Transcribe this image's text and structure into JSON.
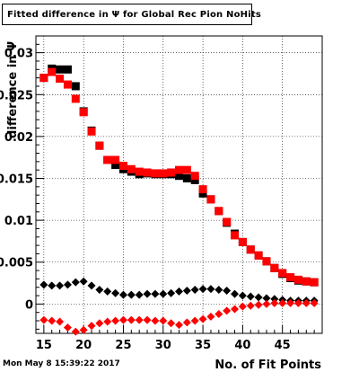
{
  "chart_data": {
    "type": "scatter",
    "title": "Fitted difference in Ψ  for Global Rec Pion NoHits",
    "xlabel": "No. of Fit Points",
    "ylabel": "difference in Ψ",
    "xlim": [
      14,
      50
    ],
    "ylim": [
      -0.0035,
      0.032
    ],
    "x_ticks": [
      15,
      20,
      25,
      30,
      35,
      40,
      45
    ],
    "y_ticks": [
      0,
      0.005,
      0.01,
      0.015,
      0.02,
      0.025,
      0.03
    ],
    "y_tick_labels": [
      "0",
      "0.005",
      "0.01",
      "0.015",
      "0.02",
      "0.025",
      "0.03"
    ],
    "grid": true,
    "series": [
      {
        "marker": "square",
        "color": "#000000",
        "x": [
          15,
          16,
          17,
          18,
          19,
          20,
          21,
          22,
          23,
          24,
          25,
          26,
          27,
          28,
          29,
          30,
          31,
          32,
          33,
          34,
          35,
          36,
          37,
          38,
          39,
          40,
          41,
          42,
          43,
          44,
          45,
          46,
          47,
          48,
          49
        ],
        "y": [
          0.027,
          0.0281,
          0.028,
          0.028,
          0.026,
          0.023,
          0.0207,
          0.0189,
          0.0172,
          0.0166,
          0.0161,
          0.0158,
          0.0155,
          0.0156,
          0.0155,
          0.0155,
          0.0155,
          0.0153,
          0.015,
          0.0148,
          0.0132,
          0.0125,
          0.0111,
          0.0097,
          0.0084,
          0.0074,
          0.0065,
          0.0058,
          0.0051,
          0.0043,
          0.0036,
          0.0031,
          0.0028,
          0.0027,
          0.0026
        ]
      },
      {
        "marker": "square",
        "color": "#ff0000",
        "x": [
          15,
          16,
          17,
          18,
          19,
          20,
          21,
          22,
          23,
          24,
          25,
          26,
          27,
          28,
          29,
          30,
          31,
          32,
          33,
          34,
          35,
          36,
          37,
          38,
          39,
          40,
          41,
          42,
          43,
          44,
          45,
          46,
          47,
          48,
          49
        ],
        "y": [
          0.027,
          0.0277,
          0.0269,
          0.0262,
          0.0245,
          0.0229,
          0.0206,
          0.0189,
          0.0172,
          0.0172,
          0.0165,
          0.0161,
          0.0158,
          0.0157,
          0.0156,
          0.0156,
          0.0157,
          0.016,
          0.016,
          0.0153,
          0.0137,
          0.0125,
          0.0111,
          0.0098,
          0.0082,
          0.0074,
          0.0065,
          0.0058,
          0.0051,
          0.0043,
          0.0037,
          0.0032,
          0.0029,
          0.0027,
          0.0026
        ]
      },
      {
        "marker": "diamond",
        "color": "#000000",
        "x": [
          15,
          16,
          17,
          18,
          19,
          20,
          21,
          22,
          23,
          24,
          25,
          26,
          27,
          28,
          29,
          30,
          31,
          32,
          33,
          34,
          35,
          36,
          37,
          38,
          39,
          40,
          41,
          42,
          43,
          44,
          45,
          46,
          47,
          48,
          49
        ],
        "y": [
          0.0023,
          0.0022,
          0.0022,
          0.0023,
          0.0026,
          0.0027,
          0.0022,
          0.0017,
          0.0015,
          0.0013,
          0.0011,
          0.0011,
          0.0011,
          0.0012,
          0.0012,
          0.0012,
          0.0013,
          0.0015,
          0.0016,
          0.0017,
          0.0018,
          0.0018,
          0.0017,
          0.0016,
          0.0012,
          0.001,
          0.0009,
          0.0008,
          0.0007,
          0.0006,
          0.0005,
          0.0004,
          0.0004,
          0.0004,
          0.0004
        ]
      },
      {
        "marker": "diamond",
        "color": "#ff0000",
        "x": [
          15,
          16,
          17,
          18,
          19,
          20,
          21,
          22,
          23,
          24,
          25,
          26,
          27,
          28,
          29,
          30,
          31,
          32,
          33,
          34,
          35,
          36,
          37,
          38,
          39,
          40,
          41,
          42,
          43,
          44,
          45,
          46,
          47,
          48,
          49
        ],
        "y": [
          -0.0019,
          -0.002,
          -0.0021,
          -0.0028,
          -0.0033,
          -0.0031,
          -0.0026,
          -0.0023,
          -0.0021,
          -0.002,
          -0.0019,
          -0.0019,
          -0.0019,
          -0.0019,
          -0.002,
          -0.002,
          -0.0023,
          -0.0025,
          -0.0022,
          -0.002,
          -0.0018,
          -0.0015,
          -0.0012,
          -0.0008,
          -0.0006,
          -0.0003,
          -0.0002,
          -0.0001,
          0.0,
          0.0001,
          0.0001,
          0.0001,
          0.0001,
          0.0001,
          0.0001
        ]
      }
    ]
  },
  "timestamp": "Mon May  8 15:39:22 2017"
}
